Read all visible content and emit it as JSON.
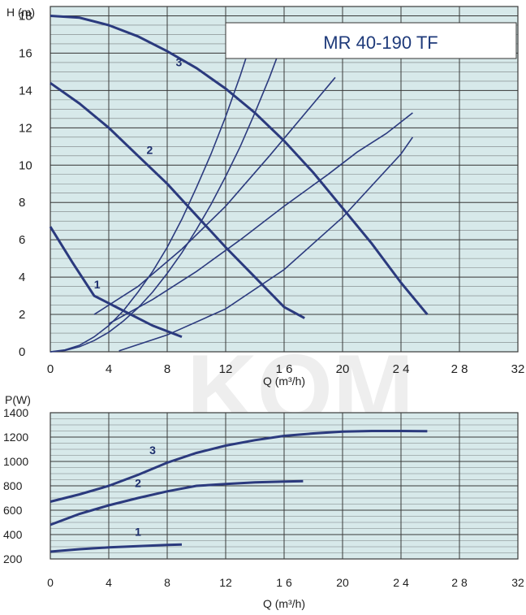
{
  "colors": {
    "plot_bg": "#d7e9ea",
    "grid": "#3a3a3a",
    "curve": "#2b3a7e",
    "title_text": "#1e3a7a",
    "watermark": "#cfcfcf"
  },
  "watermark": "KOM",
  "chart_data": [
    {
      "type": "line",
      "title": "MR 40-190 TF",
      "ylabel": "H (m)",
      "xlabel": "Q (m³/h)",
      "xlim": [
        0,
        32
      ],
      "ylim": [
        0,
        18.5
      ],
      "xticks": [
        "0",
        "4",
        "8",
        "12",
        "1 6",
        "20",
        "2 4",
        "2 8",
        "32"
      ],
      "yticks": [
        "0",
        "2",
        "4",
        "6",
        "8",
        "10",
        "12",
        "14",
        "16",
        "18"
      ],
      "ytick_values": [
        0,
        2,
        4,
        6,
        8,
        10,
        12,
        14,
        16,
        18
      ],
      "grid": true,
      "series": [
        {
          "name": "1",
          "x": [
            0,
            1.5,
            3,
            5,
            7,
            9
          ],
          "y": [
            6.7,
            4.8,
            3.0,
            2.2,
            1.4,
            0.8
          ]
        },
        {
          "name": "2",
          "x": [
            0,
            2,
            4,
            6,
            8,
            10,
            12,
            14,
            16,
            17.4
          ],
          "y": [
            14.4,
            13.3,
            12.0,
            10.5,
            9.0,
            7.3,
            5.6,
            4.0,
            2.4,
            1.8
          ]
        },
        {
          "name": "3",
          "x": [
            0,
            2,
            4,
            6,
            8,
            10,
            12,
            14,
            16,
            18,
            20,
            22,
            24,
            25.8
          ],
          "y": [
            18.0,
            17.9,
            17.5,
            16.9,
            16.1,
            15.2,
            14.1,
            12.8,
            11.3,
            9.6,
            7.7,
            5.8,
            3.7,
            2.0
          ]
        }
      ],
      "system_curves": [
        {
          "x": [
            0,
            1,
            2,
            3,
            4,
            5,
            6,
            7,
            8,
            9,
            10,
            11,
            12,
            13,
            14
          ],
          "y": [
            0,
            0.1,
            0.35,
            0.8,
            1.4,
            2.2,
            3.2,
            4.3,
            5.6,
            7.1,
            8.8,
            10.6,
            12.6,
            14.8,
            17.2
          ]
        },
        {
          "x": [
            0,
            1,
            2,
            3,
            4,
            5,
            6,
            7,
            8,
            9,
            10,
            11,
            12,
            13,
            14,
            15,
            16
          ],
          "y": [
            0,
            0.07,
            0.27,
            0.6,
            1.05,
            1.65,
            2.35,
            3.2,
            4.2,
            5.3,
            6.55,
            7.9,
            9.4,
            11.0,
            12.8,
            14.7,
            16.8
          ]
        },
        {
          "x": [
            3,
            6,
            9,
            12,
            15,
            18,
            19.5
          ],
          "y": [
            2.0,
            3.5,
            5.5,
            7.8,
            10.5,
            13.3,
            14.7
          ]
        },
        {
          "x": [
            4,
            7,
            10,
            13,
            16,
            19,
            21,
            23,
            24.8
          ],
          "y": [
            1.5,
            2.8,
            4.3,
            6.0,
            7.8,
            9.5,
            10.7,
            11.7,
            12.8
          ]
        },
        {
          "x": [
            4.7,
            8,
            12,
            16,
            20,
            24,
            24.8
          ],
          "y": [
            0.05,
            0.9,
            2.3,
            4.4,
            7.2,
            10.6,
            11.5
          ]
        }
      ],
      "label_positions": [
        {
          "text": "1",
          "x": 3.2,
          "y": 3.4
        },
        {
          "text": "2",
          "x": 6.8,
          "y": 10.6
        },
        {
          "text": "3",
          "x": 8.8,
          "y": 15.3
        }
      ]
    },
    {
      "type": "line",
      "ylabel": "P(W)",
      "xlabel": "Q (m³/h)",
      "xlim": [
        0,
        32
      ],
      "ylim": [
        200,
        1400
      ],
      "xticks": [
        "0",
        "4",
        "8",
        "12",
        "1 6",
        "20",
        "2 4",
        "2 8",
        "32"
      ],
      "yticks": [
        "200",
        "400",
        "600",
        "800",
        "1000",
        "1200",
        "1400"
      ],
      "ytick_values": [
        200,
        400,
        600,
        800,
        1000,
        1200,
        1400
      ],
      "grid": true,
      "series": [
        {
          "name": "1",
          "x": [
            0,
            2,
            4,
            6,
            8,
            9
          ],
          "y": [
            260,
            280,
            295,
            305,
            315,
            318
          ]
        },
        {
          "name": "2",
          "x": [
            0,
            2,
            4,
            6,
            8,
            10,
            12,
            14,
            16,
            17.3
          ],
          "y": [
            480,
            570,
            640,
            700,
            755,
            800,
            815,
            828,
            835,
            838
          ]
        },
        {
          "name": "3",
          "x": [
            0,
            2,
            4,
            6,
            8,
            10,
            12,
            14,
            16,
            18,
            20,
            22,
            24,
            25.8
          ],
          "y": [
            670,
            730,
            800,
            890,
            990,
            1070,
            1130,
            1175,
            1210,
            1230,
            1245,
            1250,
            1250,
            1248
          ]
        }
      ],
      "label_positions": [
        {
          "text": "1",
          "x": 6.0,
          "y": 390
        },
        {
          "text": "2",
          "x": 6.0,
          "y": 790
        },
        {
          "text": "3",
          "x": 7.0,
          "y": 1060
        }
      ]
    }
  ]
}
